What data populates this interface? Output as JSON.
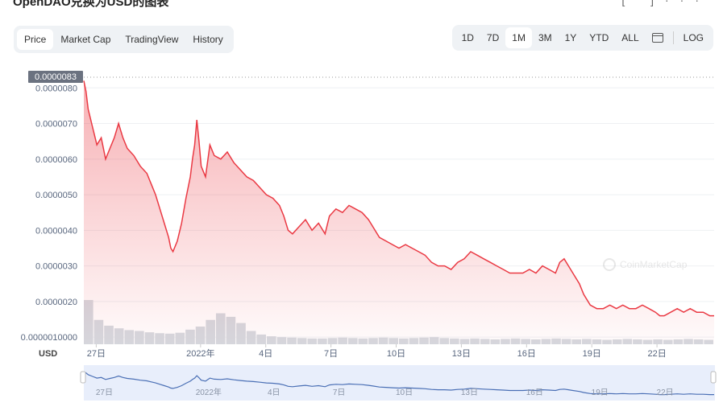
{
  "header": {
    "title": "OpenDAO兑换为USD的图表"
  },
  "tabs": [
    {
      "label": "Price",
      "active": true
    },
    {
      "label": "Market Cap"
    },
    {
      "label": "TradingView"
    },
    {
      "label": "History"
    }
  ],
  "ranges": [
    {
      "label": "1D"
    },
    {
      "label": "7D"
    },
    {
      "label": "1M",
      "active": true
    },
    {
      "label": "3M"
    },
    {
      "label": "1Y"
    },
    {
      "label": "YTD"
    },
    {
      "label": "ALL"
    }
  ],
  "log_label": "LOG",
  "currency_label": "USD",
  "watermark": "CoinMarketCap",
  "colors": {
    "line": "#ea3943",
    "fill_top": "#ea3943",
    "volume": "#c5cbd3",
    "navigator": "#e7eefc",
    "navigator_line": "#4a6fb5"
  },
  "chart_data": {
    "type": "line",
    "title": "",
    "ylabel": "",
    "xlabel": "",
    "current_price_label": "0.0000083",
    "y_ticks": [
      "0.0000080",
      "0.0000070",
      "0.0000060",
      "0.0000050",
      "0.0000040",
      "0.0000030",
      "0.0000020",
      "0.0000010000"
    ],
    "y_tick_values": [
      8e-06,
      7e-06,
      6e-06,
      5e-06,
      4e-06,
      3e-06,
      2e-06,
      1e-06
    ],
    "ylim": [
      8e-07,
      8.3e-06
    ],
    "x_tick_labels": [
      "27日",
      "2022年",
      "4日",
      "7日",
      "10日",
      "13日",
      "16日",
      "19日",
      "22日"
    ],
    "x_tick_values": [
      0.2,
      5.0,
      8.0,
      11.0,
      14.0,
      17.0,
      20.0,
      23.0,
      26.0
    ],
    "xlim": [
      0,
      29.0
    ],
    "series": [
      {
        "values": [
          [
            0.0,
            8.2e-06
          ],
          [
            0.1,
            7.9e-06
          ],
          [
            0.2,
            7.4e-06
          ],
          [
            0.4,
            6.9e-06
          ],
          [
            0.6,
            6.4e-06
          ],
          [
            0.8,
            6.6e-06
          ],
          [
            1.0,
            6e-06
          ],
          [
            1.2,
            6.3e-06
          ],
          [
            1.4,
            6.6e-06
          ],
          [
            1.6,
            7e-06
          ],
          [
            1.8,
            6.6e-06
          ],
          [
            2.0,
            6.3e-06
          ],
          [
            2.3,
            6.1e-06
          ],
          [
            2.6,
            5.8e-06
          ],
          [
            2.9,
            5.6e-06
          ],
          [
            3.1,
            5.3e-06
          ],
          [
            3.3,
            5e-06
          ],
          [
            3.5,
            4.6e-06
          ],
          [
            3.7,
            4.2e-06
          ],
          [
            3.9,
            3.8e-06
          ],
          [
            4.0,
            3.5e-06
          ],
          [
            4.1,
            3.4e-06
          ],
          [
            4.3,
            3.7e-06
          ],
          [
            4.5,
            4.2e-06
          ],
          [
            4.7,
            4.9e-06
          ],
          [
            4.9,
            5.5e-06
          ],
          [
            5.0,
            6e-06
          ],
          [
            5.1,
            6.4e-06
          ],
          [
            5.2,
            7.1e-06
          ],
          [
            5.3,
            6.5e-06
          ],
          [
            5.4,
            5.8e-06
          ],
          [
            5.6,
            5.5e-06
          ],
          [
            5.8,
            6.4e-06
          ],
          [
            6.0,
            6.1e-06
          ],
          [
            6.3,
            6e-06
          ],
          [
            6.6,
            6.2e-06
          ],
          [
            6.9,
            5.9e-06
          ],
          [
            7.2,
            5.7e-06
          ],
          [
            7.5,
            5.5e-06
          ],
          [
            7.8,
            5.4e-06
          ],
          [
            8.1,
            5.2e-06
          ],
          [
            8.4,
            5e-06
          ],
          [
            8.7,
            4.9e-06
          ],
          [
            9.0,
            4.7e-06
          ],
          [
            9.2,
            4.4e-06
          ],
          [
            9.4,
            4e-06
          ],
          [
            9.6,
            3.9e-06
          ],
          [
            9.9,
            4.1e-06
          ],
          [
            10.2,
            4.3e-06
          ],
          [
            10.5,
            4e-06
          ],
          [
            10.8,
            4.2e-06
          ],
          [
            11.1,
            3.9e-06
          ],
          [
            11.3,
            4.4e-06
          ],
          [
            11.6,
            4.6e-06
          ],
          [
            11.9,
            4.5e-06
          ],
          [
            12.2,
            4.7e-06
          ],
          [
            12.5,
            4.6e-06
          ],
          [
            12.8,
            4.5e-06
          ],
          [
            13.1,
            4.3e-06
          ],
          [
            13.3,
            4.1e-06
          ],
          [
            13.6,
            3.8e-06
          ],
          [
            13.9,
            3.7e-06
          ],
          [
            14.2,
            3.6e-06
          ],
          [
            14.5,
            3.5e-06
          ],
          [
            14.8,
            3.6e-06
          ],
          [
            15.1,
            3.5e-06
          ],
          [
            15.4,
            3.4e-06
          ],
          [
            15.7,
            3.3e-06
          ],
          [
            16.0,
            3.1e-06
          ],
          [
            16.3,
            3e-06
          ],
          [
            16.6,
            3e-06
          ],
          [
            16.9,
            2.9e-06
          ],
          [
            17.2,
            3.1e-06
          ],
          [
            17.5,
            3.2e-06
          ],
          [
            17.8,
            3.4e-06
          ],
          [
            18.1,
            3.3e-06
          ],
          [
            18.4,
            3.2e-06
          ],
          [
            18.7,
            3.1e-06
          ],
          [
            19.0,
            3e-06
          ],
          [
            19.3,
            2.9e-06
          ],
          [
            19.6,
            2.8e-06
          ],
          [
            19.9,
            2.8e-06
          ],
          [
            20.2,
            2.8e-06
          ],
          [
            20.5,
            2.9e-06
          ],
          [
            20.8,
            2.8e-06
          ],
          [
            21.1,
            3e-06
          ],
          [
            21.4,
            2.9e-06
          ],
          [
            21.7,
            2.8e-06
          ],
          [
            21.9,
            3.1e-06
          ],
          [
            22.1,
            3.2e-06
          ],
          [
            22.3,
            3e-06
          ],
          [
            22.5,
            2.8e-06
          ],
          [
            22.8,
            2.5e-06
          ],
          [
            23.0,
            2.2e-06
          ],
          [
            23.3,
            1.9e-06
          ],
          [
            23.6,
            1.8e-06
          ],
          [
            23.9,
            1.8e-06
          ],
          [
            24.2,
            1.9e-06
          ],
          [
            24.5,
            1.8e-06
          ],
          [
            24.8,
            1.9e-06
          ],
          [
            25.1,
            1.8e-06
          ],
          [
            25.4,
            1.8e-06
          ],
          [
            25.7,
            1.9e-06
          ],
          [
            26.0,
            1.8e-06
          ],
          [
            26.3,
            1.7e-06
          ],
          [
            26.5,
            1.6e-06
          ],
          [
            26.7,
            1.6e-06
          ],
          [
            27.0,
            1.7e-06
          ],
          [
            27.3,
            1.8e-06
          ],
          [
            27.6,
            1.7e-06
          ],
          [
            27.9,
            1.8e-06
          ],
          [
            28.2,
            1.7e-06
          ],
          [
            28.5,
            1.7e-06
          ],
          [
            28.8,
            1.6e-06
          ],
          [
            29.0,
            1.6e-06
          ]
        ]
      }
    ],
    "volume": [
      1.0,
      0.55,
      0.42,
      0.36,
      0.32,
      0.3,
      0.27,
      0.25,
      0.24,
      0.26,
      0.33,
      0.4,
      0.55,
      0.7,
      0.62,
      0.48,
      0.3,
      0.22,
      0.18,
      0.16,
      0.15,
      0.14,
      0.13,
      0.13,
      0.14,
      0.15,
      0.14,
      0.13,
      0.14,
      0.15,
      0.14,
      0.13,
      0.14,
      0.15,
      0.16,
      0.14,
      0.13,
      0.12,
      0.13,
      0.12,
      0.11,
      0.12,
      0.13,
      0.12,
      0.11,
      0.12,
      0.13,
      0.12,
      0.11,
      0.12,
      0.11,
      0.1,
      0.11,
      0.12,
      0.11,
      0.1,
      0.11,
      0.1,
      0.11,
      0.12,
      0.11,
      0.1
    ]
  }
}
